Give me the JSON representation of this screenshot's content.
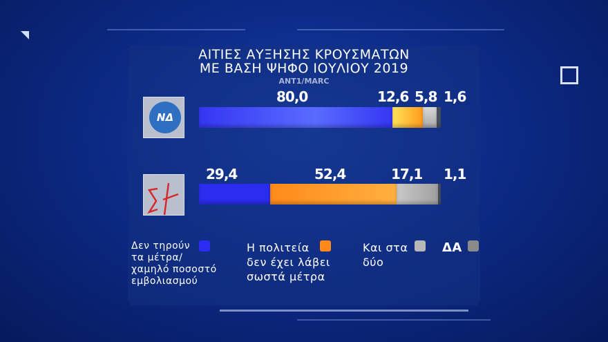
{
  "chart_data": {
    "type": "bar",
    "stacked": true,
    "orientation": "horizontal",
    "title": "ΑΙΤΙΕΣ ΑΥΞΗΣΗΣ ΚΡΟΥΣΜΑΤΩΝ ΜΕ ΒΑΣΗ ΨΗΦΟ ΙΟΥΛΙΟΥ 2019",
    "title_lines": [
      "ΑΙΤΙΕΣ ΑΥΞΗΣΗΣ ΚΡΟΥΣΜΑΤΩΝ",
      "ΜΕ ΒΑΣΗ ΨΗΦΟ ΙΟΥΛΙΟΥ 2019"
    ],
    "source": "ANT1/MARC",
    "categories": [
      "ΝΔ",
      "ΣΥΡΙΖΑ"
    ],
    "category_logo_text": [
      "ΝΔ",
      "ΣΥ"
    ],
    "series": [
      {
        "name": "Δεν τηρούν τα μέτρα/ χαμηλό ποσοστό εμβολιασμού",
        "legend_lines": [
          "Δεν τηρούν",
          "τα μέτρα/",
          "χαμηλό ποσοστό",
          "εμβολιασμού"
        ],
        "color": "#2a2cf0",
        "values": [
          80.0,
          29.4
        ],
        "labels": [
          "80,0",
          "29,4"
        ]
      },
      {
        "name": "Η πολιτεία δεν έχει λάβει σωστά μέτρα",
        "legend_lines": [
          "Η πολιτεία",
          "δεν έχει λάβει",
          "σωστά μέτρα"
        ],
        "color": "#ff8a1a",
        "values": [
          12.6,
          52.4
        ],
        "labels": [
          "12,6",
          "52,4"
        ]
      },
      {
        "name": "Και στα δύο",
        "legend_lines": [
          "Και στα",
          "δύο"
        ],
        "color": "#b8b8b8",
        "values": [
          5.8,
          17.1
        ],
        "labels": [
          "5,8",
          "17,1"
        ]
      },
      {
        "name": "ΔΑ",
        "legend_lines": [
          "ΔΑ"
        ],
        "color": "#5a6070",
        "values": [
          1.6,
          1.1
        ],
        "labels": [
          "1,6",
          "1,1"
        ]
      }
    ]
  }
}
